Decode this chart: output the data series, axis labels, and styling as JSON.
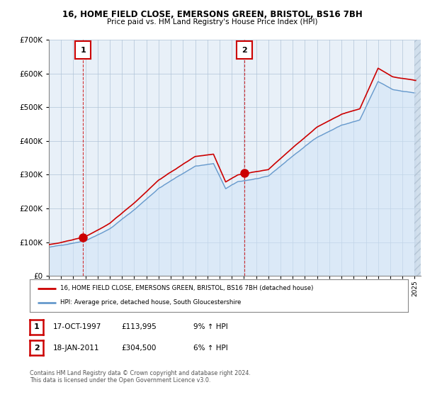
{
  "title_line1": "16, HOME FIELD CLOSE, EMERSONS GREEN, BRISTOL, BS16 7BH",
  "title_line2": "Price paid vs. HM Land Registry's House Price Index (HPI)",
  "legend_house": "16, HOME FIELD CLOSE, EMERSONS GREEN, BRISTOL, BS16 7BH (detached house)",
  "legend_hpi": "HPI: Average price, detached house, South Gloucestershire",
  "footnote": "Contains HM Land Registry data © Crown copyright and database right 2024.\nThis data is licensed under the Open Government Licence v3.0.",
  "transaction1_date": "17-OCT-1997",
  "transaction1_price": "£113,995",
  "transaction1_hpi": "9% ↑ HPI",
  "transaction2_date": "18-JAN-2011",
  "transaction2_price": "£304,500",
  "transaction2_hpi": "6% ↑ HPI",
  "house_color": "#cc0000",
  "hpi_color": "#6699cc",
  "hpi_fill_color": "#d0e4f7",
  "marker1_x": 1997.8,
  "marker1_y": 113995,
  "marker2_x": 2011.05,
  "marker2_y": 304500,
  "vline1_x": 1997.8,
  "vline2_x": 2011.05,
  "ylim": [
    0,
    700000
  ],
  "xlim_start": 1995,
  "xlim_end": 2025.5,
  "background_color": "#ffffff",
  "plot_bg_color": "#e8f0f8",
  "grid_color": "#b0c4d8",
  "hatch_color": "#c8d8e8"
}
